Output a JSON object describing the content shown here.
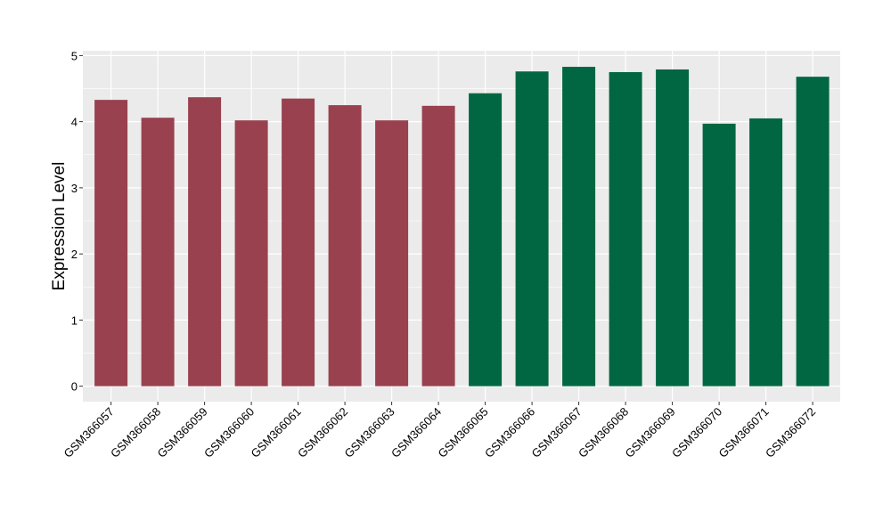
{
  "chart_data": {
    "type": "bar",
    "title": "",
    "xlabel": "",
    "ylabel": "Expression Level",
    "ylim": [
      0,
      5
    ],
    "yticks": [
      0,
      1,
      2,
      3,
      4,
      5
    ],
    "grid": true,
    "legend": "none",
    "categories": [
      "GSM366057",
      "GSM366058",
      "GSM366059",
      "GSM366060",
      "GSM366061",
      "GSM366062",
      "GSM366063",
      "GSM366064",
      "GSM366065",
      "GSM366066",
      "GSM366067",
      "GSM366068",
      "GSM366069",
      "GSM366070",
      "GSM366071",
      "GSM366072"
    ],
    "values": [
      4.33,
      4.06,
      4.37,
      4.02,
      4.35,
      4.25,
      4.02,
      4.24,
      4.43,
      4.76,
      4.83,
      4.75,
      4.79,
      3.97,
      4.05,
      4.68
    ],
    "bar_colors": [
      "#99414f",
      "#99414f",
      "#99414f",
      "#99414f",
      "#99414f",
      "#99414f",
      "#99414f",
      "#99414f",
      "#016742",
      "#016742",
      "#016742",
      "#016742",
      "#016742",
      "#016742",
      "#016742",
      "#016742"
    ],
    "panel_background": "#ebebeb",
    "gridline_color": "#ffffff"
  }
}
